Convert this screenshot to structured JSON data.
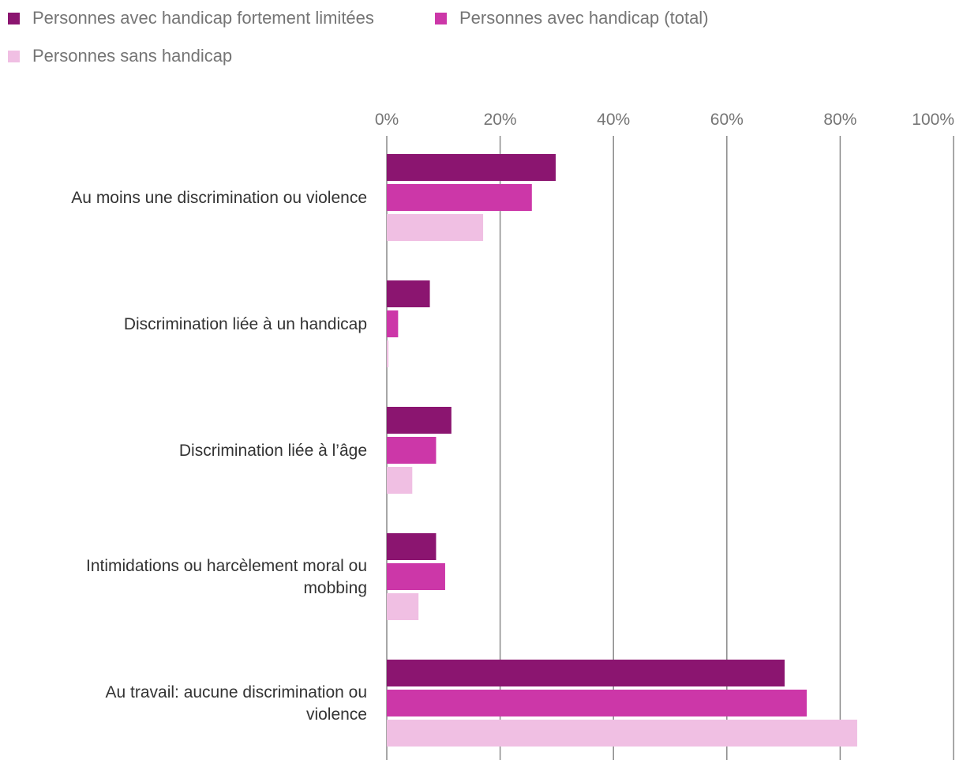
{
  "chart_data": {
    "type": "bar",
    "orientation": "horizontal",
    "title": "",
    "xlabel": "",
    "ylabel": "",
    "xlim": [
      0,
      100
    ],
    "grid": true,
    "legend_position": "top-left",
    "tick_labels": [
      "0%",
      "20%",
      "40%",
      "60%",
      "80%",
      "100%"
    ],
    "tick_values": [
      0,
      20,
      40,
      60,
      80,
      100
    ],
    "categories": [
      [
        "Au moins une discrimination ou violence"
      ],
      [
        "Discrimination liée à un handicap"
      ],
      [
        "Discrimination liée à l’âge"
      ],
      [
        "Intimidations ou harcèlement moral ou",
        "mobbing"
      ],
      [
        "Au travail: aucune discrimination ou",
        "violence"
      ]
    ],
    "series": [
      {
        "name": "Personnes avec handicap fortement limitées",
        "color": "#8b1570",
        "values": [
          29.8,
          7.6,
          11.4,
          8.7,
          70.2
        ]
      },
      {
        "name": "Personnes avec handicap (total)",
        "color": "#cc37a8",
        "values": [
          25.6,
          2.0,
          8.7,
          10.3,
          74.1
        ]
      },
      {
        "name": "Personnes sans handicap",
        "color": "#f0bfe3",
        "values": [
          17.0,
          0.3,
          4.5,
          5.6,
          83.0
        ]
      }
    ]
  }
}
